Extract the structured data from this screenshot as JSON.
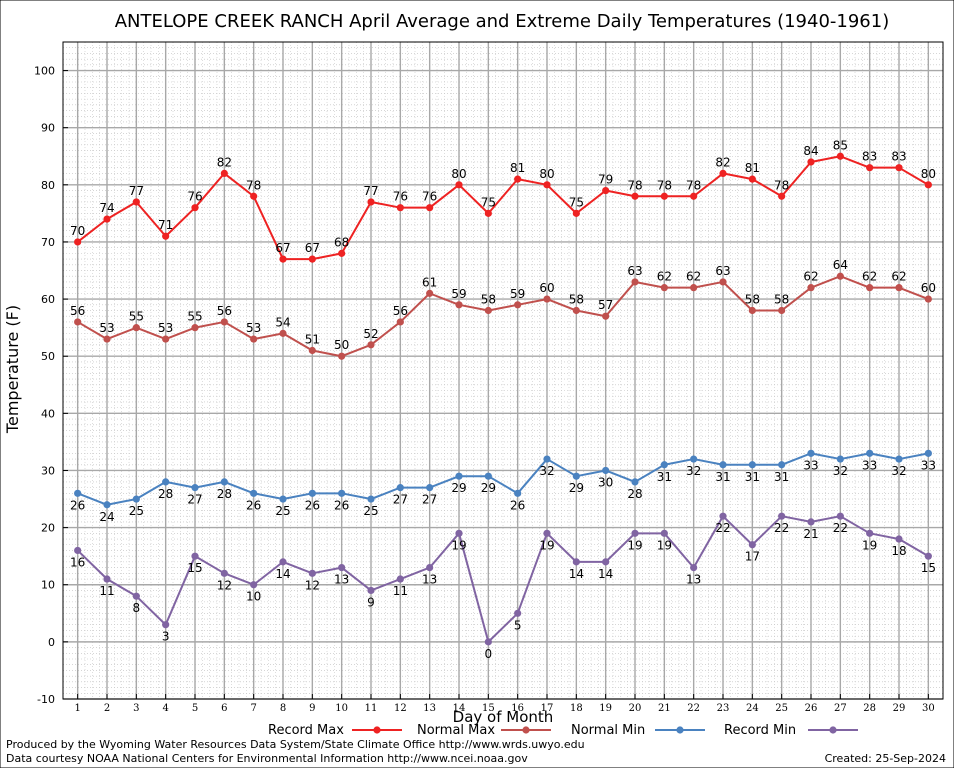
{
  "chart_data": {
    "type": "line",
    "title": "ANTELOPE CREEK RANCH April Average and Extreme Daily Temperatures (1940-1961)",
    "xlabel": "Day of Month",
    "ylabel": "Temperature (F)",
    "ylim": [
      -10,
      105
    ],
    "yticks": [
      -10,
      0,
      10,
      20,
      30,
      40,
      50,
      60,
      70,
      80,
      90,
      100
    ],
    "grid": true,
    "legend_position": "bottom",
    "x": [
      1,
      2,
      3,
      4,
      5,
      6,
      7,
      8,
      9,
      10,
      11,
      12,
      13,
      14,
      15,
      16,
      17,
      18,
      19,
      20,
      21,
      22,
      23,
      24,
      25,
      26,
      27,
      28,
      29,
      30
    ],
    "series": [
      {
        "name": "Record Max",
        "color": "#ee2222",
        "width": 2,
        "labels": "above",
        "values": [
          70,
          74,
          77,
          71,
          76,
          82,
          78,
          67,
          67,
          68,
          77,
          76,
          76,
          80,
          75,
          81,
          80,
          75,
          79,
          78,
          78,
          78,
          82,
          81,
          78,
          84,
          85,
          83,
          83,
          80
        ]
      },
      {
        "name": "Normal Max",
        "color": "#c0504d",
        "width": 2,
        "labels": "above",
        "values": [
          56,
          53,
          55,
          53,
          55,
          56,
          53,
          54,
          51,
          50,
          52,
          56,
          61,
          59,
          58,
          59,
          60,
          58,
          57,
          63,
          62,
          62,
          63,
          58,
          58,
          62,
          64,
          62,
          62,
          60
        ]
      },
      {
        "name": "Normal Min",
        "color": "#4a82c0",
        "width": 2,
        "labels": "below",
        "values": [
          26,
          24,
          25,
          28,
          27,
          28,
          26,
          25,
          26,
          26,
          25,
          27,
          27,
          29,
          29,
          26,
          32,
          29,
          30,
          28,
          31,
          32,
          31,
          31,
          31,
          33,
          32,
          33,
          32,
          33
        ]
      },
      {
        "name": "Record Min",
        "color": "#8064a2",
        "width": 2,
        "labels": "below",
        "values": [
          16,
          11,
          8,
          3,
          15,
          12,
          10,
          14,
          12,
          13,
          9,
          11,
          13,
          19,
          0,
          5,
          19,
          14,
          14,
          19,
          19,
          13,
          22,
          17,
          22,
          21,
          22,
          19,
          18,
          15
        ]
      }
    ]
  },
  "footer": {
    "produced_by": "Produced by the Wyoming Water Resources Data System/State Climate Office http://www.wrds.uwyo.edu",
    "courtesy": "Data courtesy NOAA National Centers for Environmental Information http://www.ncei.noaa.gov",
    "created": "Created: 25-Sep-2024"
  }
}
